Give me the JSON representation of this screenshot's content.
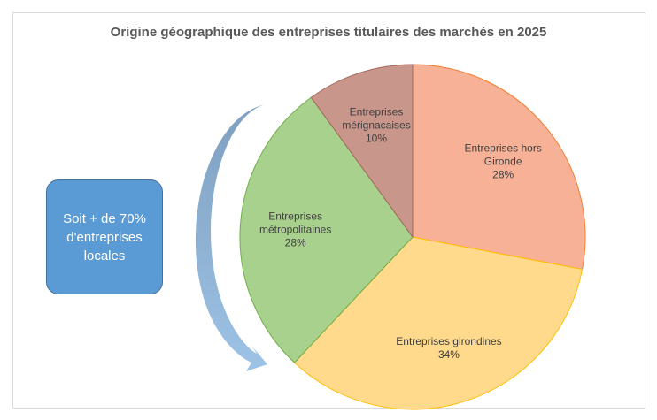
{
  "chart_data": {
    "type": "pie",
    "title": "Origine géographique des entreprises titulaires des marchés en 2025",
    "annotation": "Soit + de 70% d'entreprises locales",
    "categories": [
      "Entreprises hors Gironde",
      "Entreprises girondines",
      "Entreprises métropolitaines",
      "Entreprises mérignacaises"
    ],
    "values": [
      28,
      34,
      28,
      10
    ],
    "value_labels": [
      "28%",
      "34%",
      "28%",
      "10%"
    ],
    "colors": [
      "#f7b196",
      "#ffd98c",
      "#a9d18e",
      "#c9968b"
    ],
    "stroke_colors": [
      "#ed7d31",
      "#ffc000",
      "#70ad47",
      "#a5675c"
    ]
  }
}
